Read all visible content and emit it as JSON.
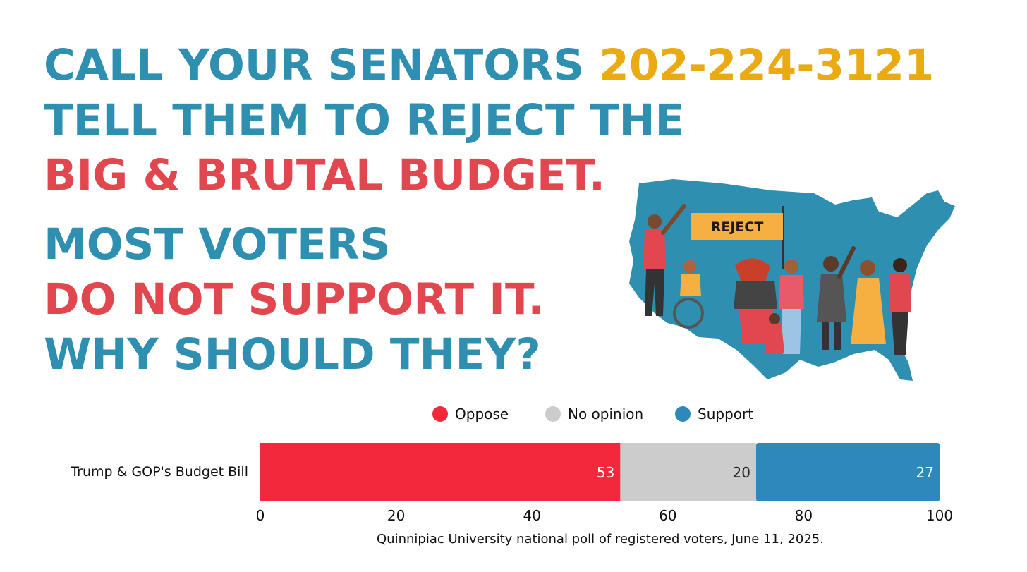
{
  "headline": {
    "line1_a": "CALL YOUR SENATORS ",
    "line1_b": "202-224-3121",
    "line2": "TELL THEM TO REJECT THE",
    "line3": "BIG & BRUTAL BUDGET.",
    "line4": "MOST VOTERS",
    "line5": "DO NOT SUPPORT IT.",
    "line6": "WHY SHOULD THEY?"
  },
  "illustration": {
    "sign_text": "REJECT",
    "map_color": "#2e8fb0",
    "sign_color": "#f5b041"
  },
  "colors": {
    "teal": "#2e8fb0",
    "red": "#e2464e",
    "gold": "#eaaa12"
  },
  "chart_data": {
    "type": "bar",
    "orientation": "horizontal",
    "stacked": true,
    "categories": [
      "Trump & GOP's Budget Bill"
    ],
    "series": [
      {
        "name": "Oppose",
        "values": [
          53
        ],
        "color": "#f3283c",
        "label_color": "#ffffff"
      },
      {
        "name": "No opinion",
        "values": [
          20
        ],
        "color": "#cccccc",
        "label_color": "#222222"
      },
      {
        "name": "Support",
        "values": [
          27
        ],
        "color": "#2e88ba",
        "label_color": "#ffffff"
      }
    ],
    "xlim": [
      0,
      100
    ],
    "xticks": [
      "0",
      "20",
      "40",
      "60",
      "80",
      "100"
    ],
    "grid": false,
    "legend": "top",
    "source": "Quinnipiac University national poll of registered voters, June 11, 2025."
  }
}
